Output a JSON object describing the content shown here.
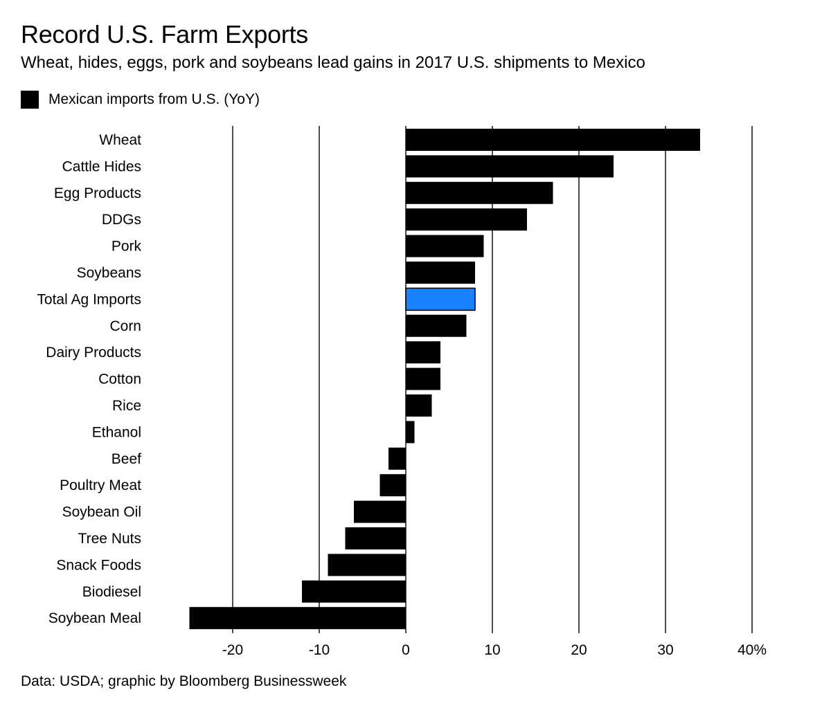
{
  "header": {
    "title": "Record U.S. Farm Exports",
    "subtitle": "Wheat, hides, eggs, pork and soybeans lead gains in 2017 U.S. shipments to Mexico"
  },
  "legend": {
    "label": "Mexican imports from U.S. (YoY)",
    "color": "#000000"
  },
  "footer": {
    "source": "Data: USDA; graphic by Bloomberg Businessweek"
  },
  "colors": {
    "bar": "#000000",
    "highlight": "#1a82ff",
    "grid": "#000000"
  },
  "chart_data": {
    "type": "bar",
    "orientation": "horizontal",
    "title": "Record U.S. Farm Exports",
    "subtitle": "Wheat, hides, eggs, pork and soybeans lead gains in 2017 U.S. shipments to Mexico",
    "categories": [
      "Wheat",
      "Cattle Hides",
      "Egg Products",
      "DDGs",
      "Pork",
      "Soybeans",
      "Total Ag Imports",
      "Corn",
      "Dairy Products",
      "Cotton",
      "Rice",
      "Ethanol",
      "Beef",
      "Poultry Meat",
      "Soybean Oil",
      "Tree Nuts",
      "Snack Foods",
      "Biodiesel",
      "Soybean Meal"
    ],
    "series": [
      {
        "name": "Mexican imports from U.S. (YoY)",
        "values": [
          34,
          24,
          17,
          14,
          9,
          8,
          8,
          7,
          4,
          4,
          3,
          1,
          -2,
          -3,
          -6,
          -7,
          -9,
          -12,
          -25
        ]
      }
    ],
    "highlight_category": "Total Ag Imports",
    "xlim": [
      -25,
      40
    ],
    "x_ticks": [
      -20,
      -10,
      0,
      10,
      20,
      30,
      40
    ],
    "x_tick_labels": [
      "-20",
      "-10",
      "0",
      "10",
      "20",
      "30",
      "40%"
    ],
    "grid": true,
    "legend_position": "top-left",
    "xlabel": "",
    "ylabel": ""
  }
}
